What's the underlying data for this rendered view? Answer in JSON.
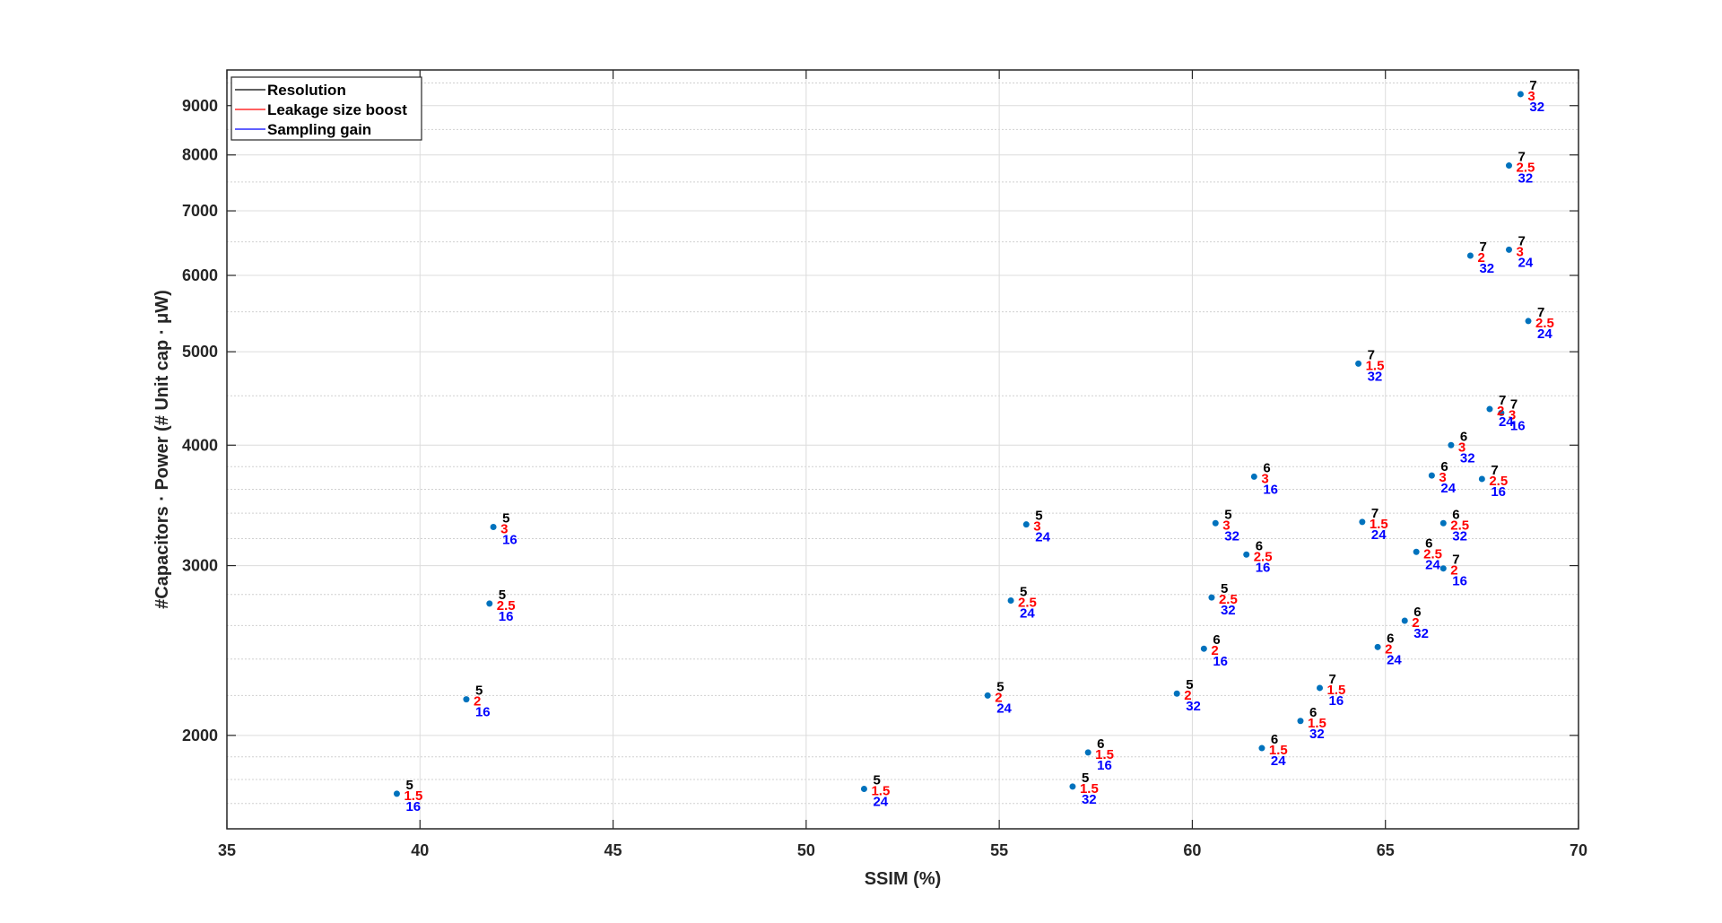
{
  "chart_data": {
    "type": "scatter",
    "xlabel": "SSIM (%)",
    "ylabel": "#Capacitors · Power (# Unit cap · μW)",
    "xlim": [
      35,
      70
    ],
    "ylim": [
      1600,
      9800
    ],
    "yscale": "log",
    "grid": true,
    "minor_grid": true,
    "xticks": [
      35,
      40,
      45,
      50,
      55,
      60,
      65,
      70
    ],
    "yticks": [
      2000,
      3000,
      4000,
      5000,
      6000,
      7000,
      8000,
      9000
    ],
    "legend_position": "top-left",
    "legend": [
      {
        "label": "Resolution",
        "color": "#000000"
      },
      {
        "label": "Leakage size boost",
        "color": "#ff0000"
      },
      {
        "label": "Sampling gain",
        "color": "#0000ff"
      }
    ],
    "marker_color": "#0072bd",
    "points": [
      {
        "x": 39.4,
        "y": 1740,
        "resolution": "5",
        "leakage_boost": "1.5",
        "sampling_gain": "16"
      },
      {
        "x": 41.2,
        "y": 2180,
        "resolution": "5",
        "leakage_boost": "2",
        "sampling_gain": "16"
      },
      {
        "x": 41.8,
        "y": 2740,
        "resolution": "5",
        "leakage_boost": "2.5",
        "sampling_gain": "16"
      },
      {
        "x": 41.9,
        "y": 3290,
        "resolution": "5",
        "leakage_boost": "3",
        "sampling_gain": "16"
      },
      {
        "x": 51.5,
        "y": 1760,
        "resolution": "5",
        "leakage_boost": "1.5",
        "sampling_gain": "24"
      },
      {
        "x": 54.7,
        "y": 2200,
        "resolution": "5",
        "leakage_boost": "2",
        "sampling_gain": "24"
      },
      {
        "x": 55.3,
        "y": 2760,
        "resolution": "5",
        "leakage_boost": "2.5",
        "sampling_gain": "24"
      },
      {
        "x": 55.7,
        "y": 3310,
        "resolution": "5",
        "leakage_boost": "3",
        "sampling_gain": "24"
      },
      {
        "x": 56.9,
        "y": 1770,
        "resolution": "5",
        "leakage_boost": "1.5",
        "sampling_gain": "32"
      },
      {
        "x": 59.6,
        "y": 2210,
        "resolution": "5",
        "leakage_boost": "2",
        "sampling_gain": "32"
      },
      {
        "x": 60.5,
        "y": 2780,
        "resolution": "5",
        "leakage_boost": "2.5",
        "sampling_gain": "32"
      },
      {
        "x": 60.6,
        "y": 3320,
        "resolution": "5",
        "leakage_boost": "3",
        "sampling_gain": "32"
      },
      {
        "x": 57.3,
        "y": 1920,
        "resolution": "6",
        "leakage_boost": "1.5",
        "sampling_gain": "16"
      },
      {
        "x": 60.3,
        "y": 2460,
        "resolution": "6",
        "leakage_boost": "2",
        "sampling_gain": "16"
      },
      {
        "x": 61.4,
        "y": 3080,
        "resolution": "6",
        "leakage_boost": "2.5",
        "sampling_gain": "16"
      },
      {
        "x": 61.6,
        "y": 3710,
        "resolution": "6",
        "leakage_boost": "3",
        "sampling_gain": "16"
      },
      {
        "x": 61.8,
        "y": 1940,
        "resolution": "6",
        "leakage_boost": "1.5",
        "sampling_gain": "24"
      },
      {
        "x": 64.8,
        "y": 2470,
        "resolution": "6",
        "leakage_boost": "2",
        "sampling_gain": "24"
      },
      {
        "x": 65.8,
        "y": 3100,
        "resolution": "6",
        "leakage_boost": "2.5",
        "sampling_gain": "24"
      },
      {
        "x": 66.2,
        "y": 3720,
        "resolution": "6",
        "leakage_boost": "3",
        "sampling_gain": "24"
      },
      {
        "x": 62.8,
        "y": 2070,
        "resolution": "6",
        "leakage_boost": "1.5",
        "sampling_gain": "32"
      },
      {
        "x": 65.5,
        "y": 2630,
        "resolution": "6",
        "leakage_boost": "2",
        "sampling_gain": "32"
      },
      {
        "x": 66.5,
        "y": 3320,
        "resolution": "6",
        "leakage_boost": "2.5",
        "sampling_gain": "32"
      },
      {
        "x": 66.7,
        "y": 4000,
        "resolution": "6",
        "leakage_boost": "3",
        "sampling_gain": "32"
      },
      {
        "x": 63.3,
        "y": 2240,
        "resolution": "7",
        "leakage_boost": "1.5",
        "sampling_gain": "16"
      },
      {
        "x": 66.5,
        "y": 2980,
        "resolution": "7",
        "leakage_boost": "2",
        "sampling_gain": "16"
      },
      {
        "x": 67.5,
        "y": 3690,
        "resolution": "7",
        "leakage_boost": "2.5",
        "sampling_gain": "16"
      },
      {
        "x": 68.0,
        "y": 4320,
        "resolution": "7",
        "leakage_boost": "3",
        "sampling_gain": "16"
      },
      {
        "x": 64.4,
        "y": 3330,
        "resolution": "7",
        "leakage_boost": "1.5",
        "sampling_gain": "24"
      },
      {
        "x": 67.7,
        "y": 4360,
        "resolution": "7",
        "leakage_boost": "2",
        "sampling_gain": "24"
      },
      {
        "x": 68.7,
        "y": 5380,
        "resolution": "7",
        "leakage_boost": "2.5",
        "sampling_gain": "24"
      },
      {
        "x": 68.2,
        "y": 6380,
        "resolution": "7",
        "leakage_boost": "3",
        "sampling_gain": "24"
      },
      {
        "x": 64.3,
        "y": 4860,
        "resolution": "7",
        "leakage_boost": "1.5",
        "sampling_gain": "32"
      },
      {
        "x": 67.2,
        "y": 6290,
        "resolution": "7",
        "leakage_boost": "2",
        "sampling_gain": "32"
      },
      {
        "x": 68.2,
        "y": 7800,
        "resolution": "7",
        "leakage_boost": "2.5",
        "sampling_gain": "32"
      },
      {
        "x": 68.5,
        "y": 9250,
        "resolution": "7",
        "leakage_boost": "3",
        "sampling_gain": "32"
      }
    ]
  }
}
